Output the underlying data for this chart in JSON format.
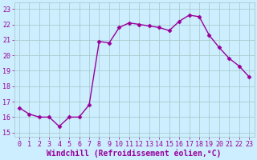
{
  "x": [
    0,
    1,
    2,
    3,
    4,
    5,
    6,
    7,
    8,
    9,
    10,
    11,
    12,
    13,
    14,
    15,
    16,
    17,
    18,
    19,
    20,
    21,
    22,
    23
  ],
  "y": [
    16.6,
    16.2,
    16.0,
    16.0,
    15.4,
    16.0,
    16.0,
    16.8,
    20.9,
    20.8,
    21.8,
    22.1,
    22.0,
    21.9,
    21.8,
    21.6,
    22.2,
    22.6,
    22.5,
    21.3,
    20.5,
    19.8,
    19.3,
    18.6
  ],
  "line_color": "#990099",
  "marker": "D",
  "markersize": 2.5,
  "linewidth": 1.0,
  "bg_color": "#cceeff",
  "grid_color": "#aacccc",
  "xlabel": "Windchill (Refroidissement éolien,°C)",
  "xlabel_fontsize": 7,
  "ylabel_ticks": [
    15,
    16,
    17,
    18,
    19,
    20,
    21,
    22,
    23
  ],
  "xtick_labels": [
    "0",
    "1",
    "2",
    "3",
    "4",
    "5",
    "6",
    "7",
    "8",
    "9",
    "10",
    "11",
    "12",
    "13",
    "14",
    "15",
    "16",
    "17",
    "18",
    "19",
    "20",
    "21",
    "22",
    "23"
  ],
  "ylim": [
    14.7,
    23.4
  ],
  "xlim": [
    -0.5,
    23.5
  ],
  "tick_fontsize": 6,
  "text_color": "#990099"
}
